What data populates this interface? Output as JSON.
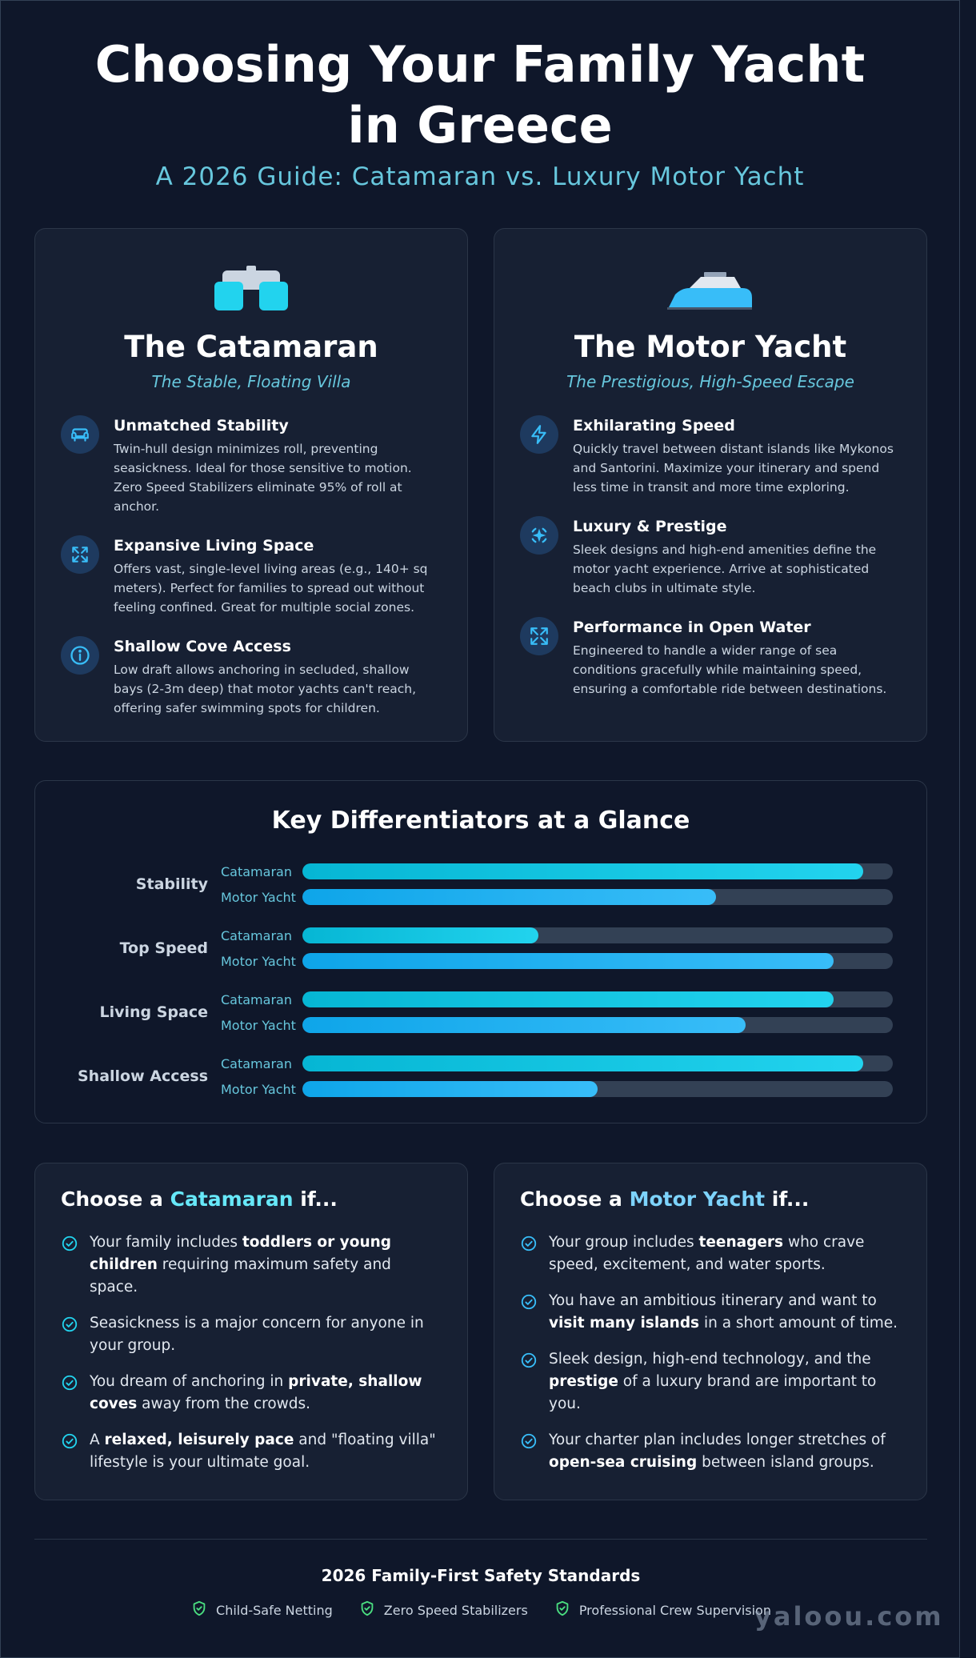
{
  "header": {
    "title": "Choosing Your Family Yacht in Greece",
    "subtitle": "A 2026 Guide: Catamaran vs. Luxury Motor Yacht"
  },
  "catamaran": {
    "icon": "catamaran-icon",
    "title": "The Catamaran",
    "tagline": "The Stable, Floating Villa",
    "features": [
      {
        "icon": "sofa-icon",
        "title": "Unmatched Stability",
        "desc": "Twin-hull design minimizes roll, preventing seasickness. Ideal for those sensitive to motion. Zero Speed Stabilizers eliminate 95% of roll at anchor."
      },
      {
        "icon": "expand-icon",
        "title": "Expansive Living Space",
        "desc": "Offers vast, single-level living areas (e.g., 140+ sq meters). Perfect for families to spread out without feeling confined. Great for multiple social zones."
      },
      {
        "icon": "info-icon",
        "title": "Shallow Cove Access",
        "desc": "Low draft allows anchoring in secluded, shallow bays (2-3m deep) that motor yachts can't reach, offering safer swimming spots for children."
      }
    ]
  },
  "motor_yacht": {
    "icon": "motor-yacht-icon",
    "title": "The Motor Yacht",
    "tagline": "The Prestigious, High-Speed Escape",
    "features": [
      {
        "icon": "lightning-icon",
        "title": "Exhilarating Speed",
        "desc": "Quickly travel between distant islands like Mykonos and Santorini. Maximize your itinerary and spend less time in transit and more time exploring."
      },
      {
        "icon": "sparkle-icon",
        "title": "Luxury & Prestige",
        "desc": "Sleek designs and high-end amenities define the motor yacht experience. Arrive at sophisticated beach clubs in ultimate style."
      },
      {
        "icon": "maximize-icon",
        "title": "Performance in Open Water",
        "desc": "Engineered to handle a wider range of sea conditions gracefully while maintaining speed, ensuring a comfortable ride between destinations."
      }
    ]
  },
  "chart_data": {
    "type": "bar",
    "title": "Key Differentiators at a Glance",
    "categories": [
      "Stability",
      "Top Speed",
      "Living Space",
      "Shallow Access"
    ],
    "series": [
      {
        "name": "Catamaran",
        "values": [
          95,
          40,
          90,
          95
        ]
      },
      {
        "name": "Motor Yacht",
        "values": [
          70,
          90,
          75,
          50
        ]
      }
    ],
    "ylim": [
      0,
      100
    ],
    "colors": {
      "Catamaran": "#22d3ee",
      "Motor Yacht": "#38bdf8"
    }
  },
  "choose_catamaran": {
    "prefix": "Choose a ",
    "accent": "Catamaran",
    "suffix": " if...",
    "items": [
      [
        {
          "t": "Your family includes "
        },
        {
          "t": "toddlers or young children",
          "b": true
        },
        {
          "t": " requiring maximum safety and space."
        }
      ],
      [
        {
          "t": "Seasickness is a major concern for anyone in your group."
        }
      ],
      [
        {
          "t": "You dream of anchoring in "
        },
        {
          "t": "private, shallow coves",
          "b": true
        },
        {
          "t": " away from the crowds."
        }
      ],
      [
        {
          "t": "A "
        },
        {
          "t": "relaxed, leisurely pace",
          "b": true
        },
        {
          "t": " and \"floating villa\" lifestyle is your ultimate goal."
        }
      ]
    ]
  },
  "choose_motor_yacht": {
    "prefix": "Choose a ",
    "accent": "Motor Yacht",
    "suffix": " if...",
    "items": [
      [
        {
          "t": "Your group includes "
        },
        {
          "t": "teenagers",
          "b": true
        },
        {
          "t": " who crave speed, excitement, and water sports."
        }
      ],
      [
        {
          "t": "You have an ambitious itinerary and want to "
        },
        {
          "t": "visit many islands",
          "b": true
        },
        {
          "t": " in a short amount of time."
        }
      ],
      [
        {
          "t": "Sleek design, high-end technology, and the "
        },
        {
          "t": "prestige",
          "b": true
        },
        {
          "t": " of a luxury brand are important to you."
        }
      ],
      [
        {
          "t": "Your charter plan includes longer stretches of "
        },
        {
          "t": "open-sea cruising",
          "b": true
        },
        {
          "t": " between island groups."
        }
      ]
    ]
  },
  "safety": {
    "title": "2026 Family-First Safety Standards",
    "items": [
      "Child-Safe Netting",
      "Zero Speed Stabilizers",
      "Professional Crew Supervision"
    ],
    "icon": "shield-check-icon"
  },
  "watermark": "yaloou.com"
}
